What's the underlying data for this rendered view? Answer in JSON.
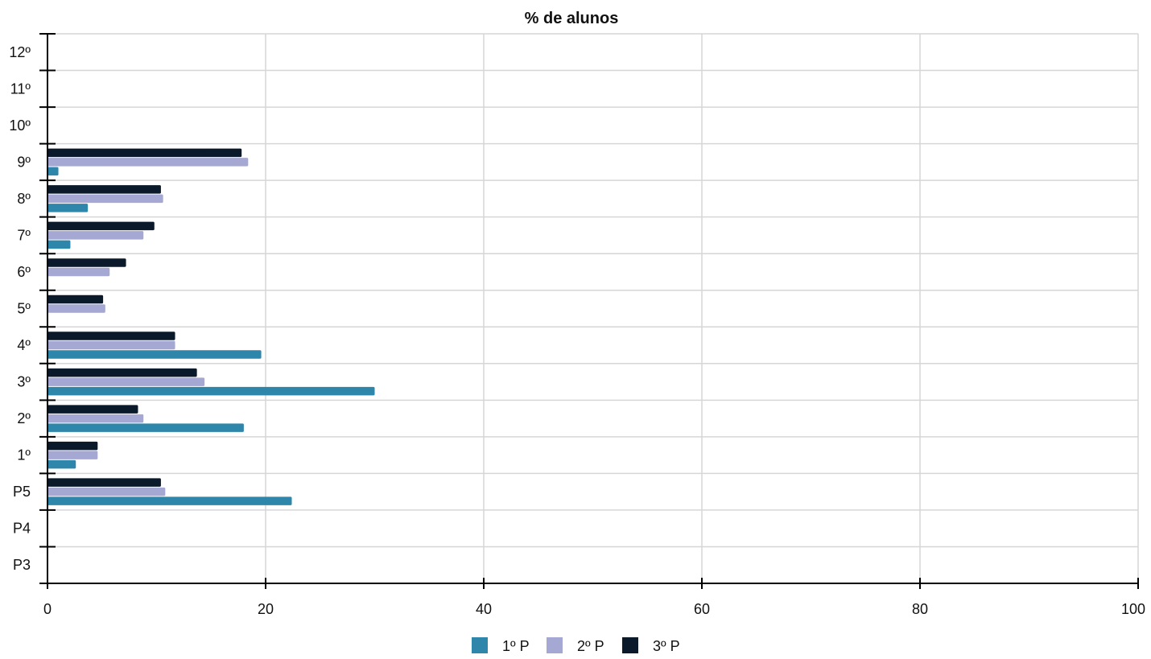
{
  "chart_data": {
    "type": "bar",
    "orientation": "horizontal",
    "title": "% de alunos",
    "xlabel": "",
    "ylabel": "",
    "xlim": [
      0,
      100
    ],
    "x_ticks": [
      "0",
      "20",
      "40",
      "60",
      "80",
      "100"
    ],
    "categories": [
      "P3",
      "P4",
      "P5",
      "1º",
      "2º",
      "3º",
      "4º",
      "5º",
      "6º",
      "7º",
      "8º",
      "9º",
      "10º",
      "11º",
      "12º"
    ],
    "series": [
      {
        "name": "1º P",
        "color": "#2e86ab",
        "values": [
          0,
          0,
          22.4,
          2.6,
          18.0,
          30.0,
          19.6,
          0,
          0,
          2.1,
          3.7,
          1.0,
          0,
          0,
          0
        ]
      },
      {
        "name": "2º P",
        "color": "#a5a8d2",
        "values": [
          0,
          0,
          10.8,
          4.6,
          8.8,
          14.4,
          11.7,
          5.3,
          5.7,
          8.8,
          10.6,
          18.4,
          0,
          0,
          0
        ]
      },
      {
        "name": "3º P",
        "color": "#0b1a2b",
        "values": [
          0,
          0,
          10.4,
          4.6,
          8.3,
          13.7,
          11.7,
          5.1,
          7.2,
          9.8,
          10.4,
          17.8,
          0,
          0,
          0
        ]
      }
    ],
    "grid": true,
    "legend_position": "bottom-center"
  }
}
